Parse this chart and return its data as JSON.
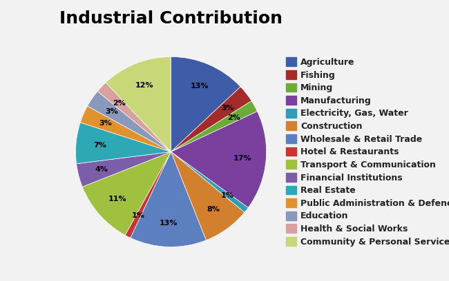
{
  "title": "Industrial Contribution",
  "labels": [
    "Agriculture",
    "Fishing",
    "Mining",
    "Manufacturing",
    "Electricity, Gas, Water",
    "Construction",
    "Wholesale & Retail Trade",
    "Hotel & Restaurants",
    "Transport & Communication",
    "Financial Institutions",
    "Real Estate",
    "Public Administration & Defence",
    "Education",
    "Health & Social Works",
    "Community & Personal Service"
  ],
  "values": [
    13,
    3,
    2,
    17,
    1,
    8,
    13,
    1,
    11,
    4,
    7,
    3,
    3,
    2,
    12
  ],
  "colors": [
    "#3F5CA8",
    "#A52A2A",
    "#6BAB3A",
    "#7B3F9E",
    "#2E9EB5",
    "#D27F2E",
    "#5B7FBF",
    "#CC3333",
    "#A0C040",
    "#7B5EA7",
    "#2EA8B5",
    "#E0922E",
    "#8899BB",
    "#D9A0A0",
    "#C8D878"
  ],
  "title_fontsize": 18,
  "legend_fontsize": 9,
  "background_color": "#f0f0f0"
}
